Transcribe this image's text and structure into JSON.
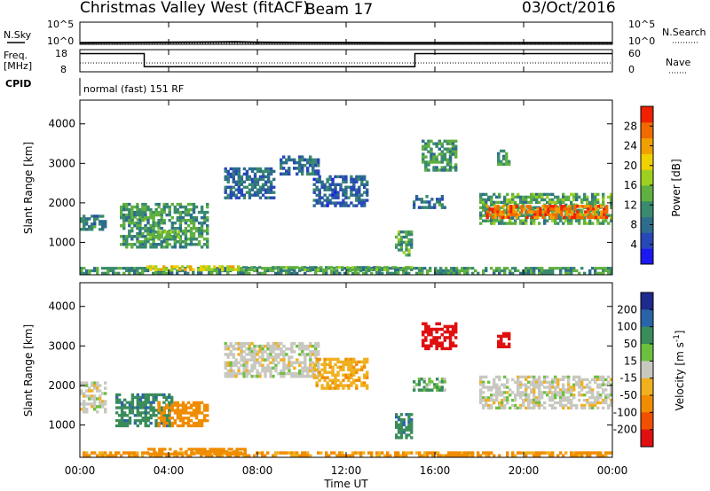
{
  "header": {
    "station": "Christmas Valley West (fitACF)",
    "beam": "Beam 17",
    "date": "03/Oct/2016"
  },
  "top_panels": {
    "nsky_label": "N.Sky",
    "nsky_ticks": [
      "10^5",
      "10^0"
    ],
    "nsearch_label": "N.Search",
    "nsearch_ticks": [
      "10^5",
      "10^0"
    ],
    "freq_label": "Freq.",
    "freq_unit": "[MHz]",
    "freq_ticks": [
      "18",
      "8"
    ],
    "nave_label": "Nave",
    "nave_ticks": [
      "60",
      "0"
    ],
    "cpid_label": "CPID",
    "cpid_text": "normal (fast) 151 RF"
  },
  "x_axis": {
    "title": "Time UT",
    "ticks": [
      "00:00",
      "04:00",
      "08:00",
      "12:00",
      "16:00",
      "20:00",
      "00:00"
    ]
  },
  "chart_data": [
    {
      "type": "line",
      "panel": "noise",
      "series": [
        {
          "name": "N.Sky",
          "x_hours": [
            0,
            2,
            4,
            6,
            7,
            8,
            10,
            12,
            14,
            16,
            18,
            20,
            22,
            24
          ],
          "values_log10": [
            0.35,
            0.4,
            0.45,
            0.5,
            0.55,
            0.45,
            0.4,
            0.38,
            0.36,
            0.35,
            0.34,
            0.35,
            0.36,
            0.35
          ]
        },
        {
          "name": "N.Search",
          "x_hours": [
            0,
            24
          ],
          "values_log10": [
            0.25,
            0.25
          ]
        }
      ],
      "ylim": [
        0,
        5
      ]
    },
    {
      "type": "line",
      "panel": "frequency",
      "series": [
        {
          "name": "Freq.",
          "x_hours": [
            0,
            2.9,
            2.9,
            15.1,
            15.1,
            24
          ],
          "values": [
            16.2,
            16.2,
            10.3,
            10.3,
            16.2,
            16.2
          ]
        },
        {
          "name": "Nave",
          "x_hours": [
            0,
            24
          ],
          "values": [
            24,
            24
          ]
        }
      ],
      "ylim_freq": [
        8,
        18
      ],
      "ylim_nave": [
        0,
        60
      ]
    },
    {
      "type": "heatmap",
      "panel": "power",
      "xlabel": "",
      "ylabel": "Slant Range [km]",
      "xlim_hours": [
        0,
        24
      ],
      "ylim_km": [
        180,
        4600
      ],
      "yticks": [
        1000,
        2000,
        3000,
        4000
      ],
      "colorbar": {
        "label": "Power [dB]",
        "ticks": [
          4,
          8,
          12,
          16,
          20,
          24,
          28
        ],
        "range": [
          0,
          32
        ]
      },
      "regions": [
        {
          "t0": 0.0,
          "t1": 24.0,
          "r0": 190,
          "r1": 380,
          "value": 12
        },
        {
          "t0": 3.0,
          "t1": 7.2,
          "r0": 280,
          "r1": 420,
          "value": 20
        },
        {
          "t0": 7.2,
          "t1": 15.0,
          "r0": 280,
          "r1": 400,
          "value": 13
        },
        {
          "t0": 0.0,
          "t1": 1.2,
          "r0": 1300,
          "r1": 1700,
          "value": 9
        },
        {
          "t0": 2.2,
          "t1": 3.0,
          "r0": 1550,
          "r1": 1800,
          "value": 14
        },
        {
          "t0": 1.8,
          "t1": 5.8,
          "r0": 850,
          "r1": 2000,
          "value": 12
        },
        {
          "t0": 3.0,
          "t1": 4.5,
          "r0": 1100,
          "r1": 1300,
          "value": 16
        },
        {
          "t0": 6.5,
          "t1": 8.8,
          "r0": 2100,
          "r1": 2900,
          "value": 8
        },
        {
          "t0": 9.0,
          "t1": 10.8,
          "r0": 2700,
          "r1": 3200,
          "value": 8
        },
        {
          "t0": 10.5,
          "t1": 13.0,
          "r0": 1900,
          "r1": 2700,
          "value": 7
        },
        {
          "t0": 14.2,
          "t1": 15.0,
          "r0": 650,
          "r1": 1300,
          "value": 13
        },
        {
          "t0": 15.0,
          "t1": 16.5,
          "r0": 1850,
          "r1": 2200,
          "value": 9
        },
        {
          "t0": 15.4,
          "t1": 17.0,
          "r0": 2800,
          "r1": 3600,
          "value": 12
        },
        {
          "t0": 18.8,
          "t1": 19.4,
          "r0": 2950,
          "r1": 3350,
          "value": 12
        },
        {
          "t0": 18.0,
          "t1": 24.0,
          "r0": 1450,
          "r1": 2250,
          "value": 13
        },
        {
          "t0": 18.3,
          "t1": 23.8,
          "r0": 1600,
          "r1": 1950,
          "value": 27
        }
      ]
    },
    {
      "type": "heatmap",
      "panel": "velocity",
      "xlabel": "Time UT",
      "ylabel": "Slant Range [km]",
      "xlim_hours": [
        0,
        24
      ],
      "ylim_km": [
        180,
        4600
      ],
      "yticks": [
        1000,
        2000,
        3000,
        4000
      ],
      "colorbar": {
        "label": "Velocity [m s^-1]",
        "ticks": [
          "200",
          "100",
          "50",
          "15",
          "-15",
          "-50",
          "-100",
          "-200"
        ],
        "range": [
          -250,
          250
        ]
      },
      "regions": [
        {
          "t0": 0.0,
          "t1": 24.0,
          "r0": 190,
          "r1": 330,
          "value": -60
        },
        {
          "t0": 2.8,
          "t1": 7.5,
          "r0": 240,
          "r1": 420,
          "value": -70
        },
        {
          "t0": 0.0,
          "t1": 1.2,
          "r0": 1300,
          "r1": 2100,
          "value": 0
        },
        {
          "t0": 1.6,
          "t1": 4.2,
          "r0": 950,
          "r1": 1800,
          "value": 60
        },
        {
          "t0": 3.5,
          "t1": 5.8,
          "r0": 950,
          "r1": 1600,
          "value": -80
        },
        {
          "t0": 6.5,
          "t1": 10.8,
          "r0": 2200,
          "r1": 3100,
          "value": 0
        },
        {
          "t0": 10.5,
          "t1": 13.0,
          "r0": 1900,
          "r1": 2700,
          "value": -40
        },
        {
          "t0": 14.2,
          "t1": 15.0,
          "r0": 650,
          "r1": 1300,
          "value": 60
        },
        {
          "t0": 15.0,
          "t1": 16.5,
          "r0": 1850,
          "r1": 2200,
          "value": 30
        },
        {
          "t0": 15.4,
          "t1": 17.0,
          "r0": 2900,
          "r1": 3600,
          "value": -180
        },
        {
          "t0": 18.8,
          "t1": 19.4,
          "r0": 2950,
          "r1": 3350,
          "value": -190
        },
        {
          "t0": 18.0,
          "t1": 24.0,
          "r0": 1400,
          "r1": 2250,
          "value": 0
        }
      ]
    }
  ]
}
